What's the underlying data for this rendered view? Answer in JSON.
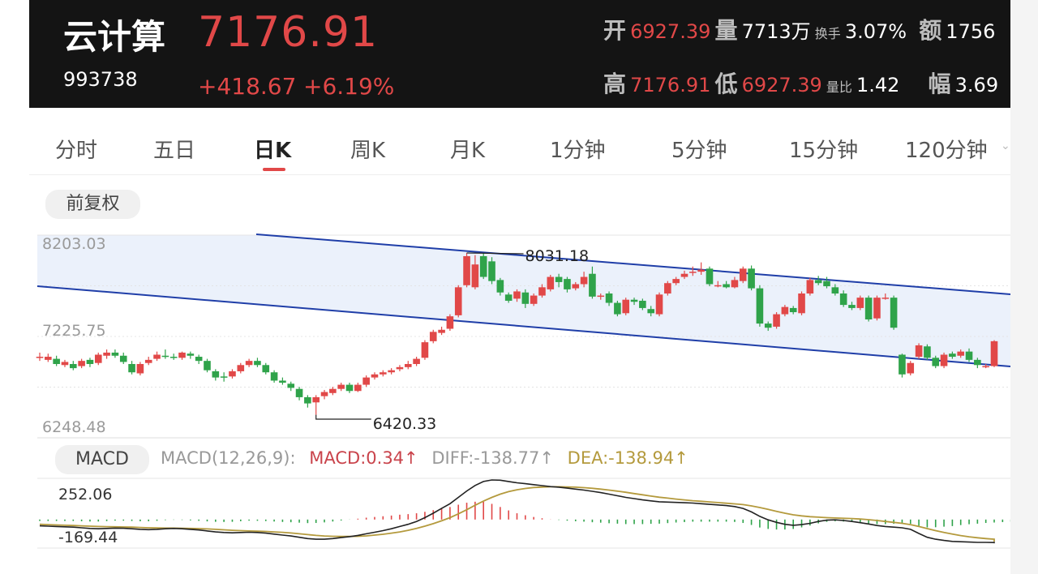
{
  "stock": {
    "name": "云计算",
    "price": "7176.91",
    "code": "993738",
    "change": "+418.67",
    "change_pct": "+6.19%"
  },
  "stats": {
    "open_label": "开",
    "open_value": "6927.39",
    "volume_label": "量",
    "volume_value": "7713万",
    "turnover_label": "换手",
    "turnover_value": "3.07%",
    "amount_label": "额",
    "amount_value": "1756",
    "high_label": "高",
    "high_value": "7176.91",
    "low_label": "低",
    "low_value": "6927.39",
    "ratio_label": "量比",
    "ratio_value": "1.42",
    "amplitude_label": "幅",
    "amplitude_value": "3.69"
  },
  "tabs": [
    "分时",
    "五日",
    "日K",
    "周K",
    "月K",
    "1分钟",
    "5分钟",
    "15分钟",
    "120分钟"
  ],
  "active_tab": "日K",
  "adjust_label": "前复权",
  "macd_panel": {
    "button": "MACD",
    "params": "MACD(12,26,9):",
    "macd": "MACD:0.34↑",
    "diff": "DIFF:-138.77↑",
    "dea": "DEA:-138.94↑"
  },
  "colors": {
    "up": "#e14848",
    "down": "#2fa34a",
    "channel": "#1f3ea8",
    "dea": "#b49a3d",
    "diff": "#222222"
  },
  "chart_data": {
    "type": "candlestick",
    "price_axis_ticks": [
      "8203.03",
      "7225.75",
      "6248.48"
    ],
    "ylim": [
      6248.48,
      8203.03
    ],
    "annotations": {
      "high": "8031.18",
      "low": "6420.33"
    },
    "candles": [
      [
        7020,
        7030,
        7070,
        6990
      ],
      [
        7000,
        7030,
        7060,
        6980
      ],
      [
        7010,
        6960,
        7040,
        6940
      ],
      [
        6950,
        6980,
        7000,
        6930
      ],
      [
        6960,
        6920,
        6990,
        6900
      ],
      [
        6940,
        6990,
        7010,
        6920
      ],
      [
        7000,
        6960,
        7020,
        6930
      ],
      [
        6970,
        7050,
        7070,
        6950
      ],
      [
        7040,
        7070,
        7100,
        7010
      ],
      [
        7070,
        7040,
        7100,
        7020
      ],
      [
        7040,
        6980,
        7070,
        6960
      ],
      [
        6960,
        6880,
        6990,
        6860
      ],
      [
        6870,
        6960,
        6980,
        6850
      ],
      [
        6970,
        7000,
        7030,
        6950
      ],
      [
        7010,
        7050,
        7080,
        6990
      ],
      [
        7040,
        7030,
        7100,
        7010
      ],
      [
        7030,
        7020,
        7060,
        7000
      ],
      [
        7020,
        7070,
        7080,
        7000
      ],
      [
        7060,
        7040,
        7080,
        7010
      ],
      [
        7030,
        6990,
        7050,
        6960
      ],
      [
        6990,
        6900,
        7010,
        6880
      ],
      [
        6890,
        6830,
        6910,
        6800
      ],
      [
        6840,
        6830,
        6880,
        6790
      ],
      [
        6840,
        6890,
        6910,
        6820
      ],
      [
        6890,
        6950,
        6970,
        6870
      ],
      [
        6950,
        6990,
        7010,
        6930
      ],
      [
        6990,
        6950,
        7020,
        6930
      ],
      [
        6950,
        6880,
        6970,
        6860
      ],
      [
        6880,
        6800,
        6900,
        6780
      ],
      [
        6800,
        6780,
        6830,
        6760
      ],
      [
        6770,
        6730,
        6790,
        6700
      ],
      [
        6720,
        6640,
        6740,
        6610
      ],
      [
        6640,
        6580,
        6660,
        6540
      ],
      [
        6590,
        6640,
        6660,
        6470
      ],
      [
        6650,
        6690,
        6710,
        6620
      ],
      [
        6680,
        6720,
        6740,
        6660
      ],
      [
        6720,
        6760,
        6780,
        6700
      ],
      [
        6760,
        6700,
        6780,
        6680
      ],
      [
        6700,
        6760,
        6780,
        6690
      ],
      [
        6760,
        6830,
        6850,
        6740
      ],
      [
        6830,
        6860,
        6880,
        6810
      ],
      [
        6860,
        6880,
        6900,
        6840
      ],
      [
        6880,
        6900,
        6920,
        6860
      ],
      [
        6910,
        6930,
        6950,
        6890
      ],
      [
        6930,
        6960,
        6990,
        6910
      ],
      [
        6960,
        7010,
        7030,
        6940
      ],
      [
        7020,
        7170,
        7190,
        7000
      ],
      [
        7180,
        7270,
        7290,
        7160
      ],
      [
        7260,
        7290,
        7320,
        7240
      ],
      [
        7300,
        7420,
        7440,
        7280
      ],
      [
        7430,
        7700,
        7720,
        7410
      ],
      [
        7720,
        8000,
        8031,
        7700
      ],
      [
        7700,
        7920,
        8010,
        7680
      ],
      [
        8000,
        7800,
        8031,
        7780
      ],
      [
        7950,
        7760,
        7990,
        7730
      ],
      [
        7770,
        7650,
        7790,
        7620
      ],
      [
        7630,
        7570,
        7650,
        7550
      ],
      [
        7590,
        7660,
        7680,
        7560
      ],
      [
        7650,
        7540,
        7680,
        7500
      ],
      [
        7540,
        7620,
        7640,
        7520
      ],
      [
        7620,
        7700,
        7730,
        7600
      ],
      [
        7680,
        7800,
        7820,
        7660
      ],
      [
        7800,
        7750,
        7830,
        7700
      ],
      [
        7780,
        7680,
        7800,
        7650
      ],
      [
        7690,
        7730,
        7750,
        7670
      ],
      [
        7730,
        7800,
        7850,
        7700
      ],
      [
        7830,
        7610,
        7900,
        7590
      ],
      [
        7610,
        7620,
        7640,
        7580
      ],
      [
        7640,
        7550,
        7660,
        7520
      ],
      [
        7550,
        7440,
        7570,
        7420
      ],
      [
        7450,
        7580,
        7600,
        7430
      ],
      [
        7580,
        7560,
        7600,
        7530
      ],
      [
        7570,
        7500,
        7590,
        7480
      ],
      [
        7490,
        7450,
        7520,
        7420
      ],
      [
        7440,
        7630,
        7650,
        7420
      ],
      [
        7640,
        7740,
        7760,
        7620
      ],
      [
        7740,
        7780,
        7800,
        7720
      ],
      [
        7800,
        7830,
        7860,
        7780
      ],
      [
        7840,
        7850,
        7900,
        7810
      ],
      [
        7850,
        7870,
        7940,
        7820
      ],
      [
        7880,
        7730,
        7900,
        7710
      ],
      [
        7720,
        7720,
        7760,
        7700
      ],
      [
        7730,
        7700,
        7760,
        7690
      ],
      [
        7700,
        7770,
        7800,
        7690
      ],
      [
        7760,
        7880,
        7900,
        7740
      ],
      [
        7880,
        7690,
        7910,
        7670
      ],
      [
        7690,
        7350,
        7720,
        7320
      ],
      [
        7350,
        7310,
        7370,
        7280
      ],
      [
        7320,
        7440,
        7460,
        7300
      ],
      [
        7440,
        7510,
        7530,
        7420
      ],
      [
        7500,
        7460,
        7520,
        7440
      ],
      [
        7450,
        7640,
        7660,
        7430
      ],
      [
        7640,
        7770,
        7790,
        7620
      ],
      [
        7770,
        7740,
        7810,
        7720
      ],
      [
        7760,
        7710,
        7800,
        7690
      ],
      [
        7700,
        7640,
        7730,
        7620
      ],
      [
        7640,
        7530,
        7670,
        7510
      ],
      [
        7530,
        7500,
        7560,
        7480
      ],
      [
        7500,
        7600,
        7620,
        7480
      ],
      [
        7600,
        7390,
        7620,
        7370
      ],
      [
        7400,
        7600,
        7620,
        7380
      ],
      [
        7600,
        7600,
        7640,
        7580
      ],
      [
        7600,
        7310,
        7620,
        7290
      ],
      [
        7050,
        6860,
        7060,
        6830
      ],
      [
        6870,
        6970,
        6990,
        6850
      ],
      [
        7030,
        7140,
        7160,
        7010
      ],
      [
        7130,
        7020,
        7150,
        7000
      ],
      [
        7020,
        6940,
        7040,
        6920
      ],
      [
        6940,
        7050,
        7070,
        6920
      ],
      [
        7060,
        7030,
        7080,
        7010
      ],
      [
        7040,
        7080,
        7100,
        7020
      ],
      [
        7080,
        7000,
        7110,
        6980
      ],
      [
        7000,
        6950,
        7020,
        6920
      ],
      [
        6940,
        6940,
        6960,
        6920
      ],
      [
        6940,
        7180,
        7190,
        6930
      ]
    ],
    "macd_axis_ticks": [
      "252.06",
      "-169.44"
    ],
    "macd_ylim": [
      -180,
      260
    ],
    "diff_series": [
      -40,
      -42,
      -44,
      -46,
      -48,
      -52,
      -56,
      -58,
      -56,
      -54,
      -55,
      -58,
      -62,
      -64,
      -62,
      -58,
      -56,
      -58,
      -62,
      -66,
      -72,
      -78,
      -82,
      -84,
      -82,
      -80,
      -82,
      -86,
      -92,
      -98,
      -104,
      -112,
      -120,
      -124,
      -124,
      -120,
      -114,
      -108,
      -100,
      -90,
      -80,
      -70,
      -58,
      -44,
      -30,
      -12,
      12,
      40,
      70,
      100,
      140,
      180,
      215,
      240,
      250,
      248,
      240,
      232,
      226,
      220,
      214,
      208,
      204,
      198,
      192,
      186,
      178,
      170,
      160,
      150,
      140,
      132,
      124,
      118,
      112,
      110,
      108,
      106,
      104,
      100,
      96,
      92,
      88,
      82,
      70,
      48,
      20,
      -2,
      -18,
      -30,
      -36,
      -32,
      -24,
      -12,
      -4,
      -2,
      -6,
      -12,
      -20,
      -28,
      -38,
      -44,
      -48,
      -52,
      -62,
      -88,
      -112,
      -124,
      -132,
      -138,
      -140,
      -142,
      -144,
      -144,
      -145,
      -146,
      -148,
      -150,
      -148,
      -140
    ],
    "dea_series": [
      -30,
      -32,
      -34,
      -36,
      -38,
      -40,
      -42,
      -44,
      -45,
      -46,
      -47,
      -48,
      -50,
      -52,
      -53,
      -54,
      -54,
      -55,
      -56,
      -57,
      -59,
      -62,
      -65,
      -68,
      -70,
      -72,
      -73,
      -75,
      -78,
      -81,
      -85,
      -90,
      -95,
      -100,
      -104,
      -106,
      -107,
      -107,
      -106,
      -103,
      -98,
      -93,
      -86,
      -78,
      -68,
      -56,
      -42,
      -26,
      -8,
      12,
      36,
      62,
      90,
      116,
      140,
      160,
      176,
      188,
      196,
      202,
      205,
      207,
      207,
      206,
      204,
      201,
      197,
      192,
      186,
      179,
      172,
      164,
      156,
      148,
      141,
      135,
      129,
      124,
      119,
      115,
      111,
      107,
      103,
      99,
      94,
      86,
      76,
      64,
      52,
      40,
      30,
      23,
      18,
      15,
      12,
      10,
      8,
      6,
      3,
      -1,
      -6,
      -12,
      -18,
      -24,
      -32,
      -44,
      -57,
      -70,
      -82,
      -92,
      -101,
      -109,
      -115,
      -120,
      -124,
      -128,
      -132,
      -135,
      -138,
      -139
    ],
    "macd_hist": [
      -10,
      -10,
      -10,
      -10,
      -10,
      -12,
      -14,
      -14,
      -11,
      -8,
      -8,
      -10,
      -12,
      -12,
      -9,
      -4,
      -2,
      -3,
      -6,
      -9,
      -13,
      -16,
      -17,
      -16,
      -12,
      -8,
      -9,
      -11,
      -14,
      -17,
      -19,
      -22,
      -25,
      -24,
      -20,
      -14,
      -7,
      -1,
      6,
      13,
      18,
      23,
      28,
      34,
      38,
      44,
      54,
      66,
      78,
      88,
      104,
      118,
      125,
      124,
      110,
      88,
      64,
      44,
      30,
      18,
      9,
      1,
      -3,
      -8,
      -12,
      -15,
      -19,
      -22,
      -26,
      -29,
      -32,
      -32,
      -32,
      -30,
      -29,
      -25,
      -21,
      -18,
      -15,
      -15,
      -15,
      -15,
      -15,
      -17,
      -24,
      -38,
      -56,
      -66,
      -70,
      -70,
      -66,
      -55,
      -42,
      -27,
      -16,
      -12,
      -14,
      -18,
      -23,
      -27,
      -32,
      -32,
      -30,
      -28,
      -30,
      -44,
      -55,
      -54,
      -50,
      -46,
      -39,
      -33,
      -29,
      -24,
      -21,
      -18,
      -16,
      -15,
      -10,
      -1
    ]
  }
}
